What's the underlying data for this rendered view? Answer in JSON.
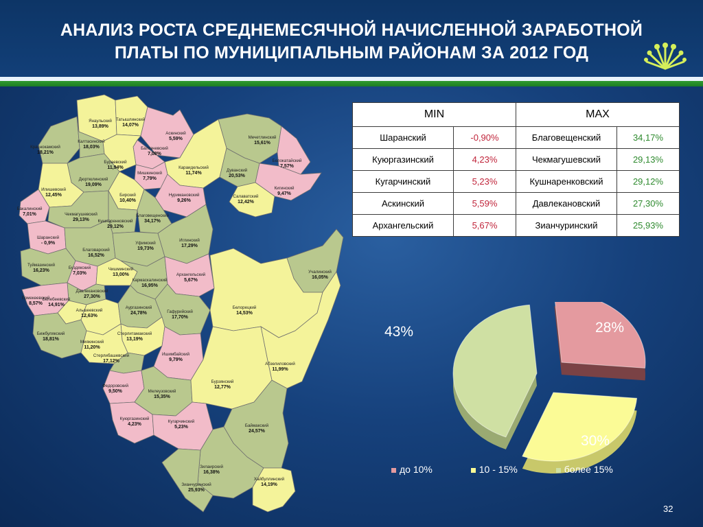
{
  "slide": {
    "title_line1": "АНАЛИЗ РОСТА СРЕДНЕМЕСЯЧНОЙ НАЧИСЛЕННОЙ ЗАРАБОТНОЙ",
    "title_line2": "ПЛАТЫ ПО МУНИЦИПАЛЬНЫМ РАЙОНАМ ЗА 2012 ГОД",
    "page_number": "32"
  },
  "colors": {
    "low": "#f2bcc9",
    "mid": "#f4f39a",
    "high": "#b9c88e",
    "border": "#6f6f6f",
    "pie_low": "#e49a9f",
    "pie_mid": "#fbfb96",
    "pie_high": "#cfe0a3"
  },
  "table": {
    "header_min": "MIN",
    "header_max": "MAX",
    "rows": [
      {
        "min_name": "Шаранский",
        "min_val": "-0,90%",
        "max_name": "Благовещенский",
        "max_val": "34,17%"
      },
      {
        "min_name": "Куюргазинский",
        "min_val": "4,23%",
        "max_name": "Чекмагушевский",
        "max_val": "29,13%"
      },
      {
        "min_name": "Кугарчинский",
        "min_val": "5,23%",
        "max_name": "Кушнаренковский",
        "max_val": "29,12%"
      },
      {
        "min_name": "Аскинский",
        "min_val": "5,59%",
        "max_name": "Давлекановский",
        "max_val": "27,30%"
      },
      {
        "min_name": "Архангельский",
        "min_val": "5,67%",
        "max_name": "Зианчуринский",
        "max_val": "25,93%"
      }
    ]
  },
  "map": {
    "districts": [
      {
        "name": "Янаульский",
        "value": "13,89%",
        "cat": "mid"
      },
      {
        "name": "Татышлинский",
        "value": "14,07%",
        "cat": "mid"
      },
      {
        "name": "Аскинский",
        "value": "5,59%",
        "cat": "low"
      },
      {
        "name": "Мечетлинский",
        "value": "15,61%",
        "cat": "high"
      },
      {
        "name": "Краснокамский",
        "value": "18,21%",
        "cat": "high"
      },
      {
        "name": "Калтасинский",
        "value": "18,03%",
        "cat": "high"
      },
      {
        "name": "Балтачевский",
        "value": "7,08%",
        "cat": "low"
      },
      {
        "name": "Белокатайский",
        "value": "7,57%",
        "cat": "low"
      },
      {
        "name": "Бураевский",
        "value": "11,94%",
        "cat": "mid"
      },
      {
        "name": "Караидельский",
        "value": "11,74%",
        "cat": "mid"
      },
      {
        "name": "Дуванский",
        "value": "20,53%",
        "cat": "high"
      },
      {
        "name": "Дюртюлинский",
        "value": "19,09%",
        "cat": "high"
      },
      {
        "name": "Мишкинский",
        "value": "7,79%",
        "cat": "low"
      },
      {
        "name": "Кигинский",
        "value": "9,47%",
        "cat": "low"
      },
      {
        "name": "Илишевский",
        "value": "12,45%",
        "cat": "mid"
      },
      {
        "name": "Бирский",
        "value": "10,40%",
        "cat": "mid"
      },
      {
        "name": "Нуримановский",
        "value": "9,26%",
        "cat": "low"
      },
      {
        "name": "Салаватский",
        "value": "12,42%",
        "cat": "mid"
      },
      {
        "name": "Бакалинский",
        "value": "7,01%",
        "cat": "low"
      },
      {
        "name": "Чекмагушевский",
        "value": "29,13%",
        "cat": "high"
      },
      {
        "name": "Кушнаренковский",
        "value": "29,12%",
        "cat": "high"
      },
      {
        "name": "Благовещенский",
        "value": "34,17%",
        "cat": "high"
      },
      {
        "name": "Шаранский",
        "value": "- 0,9%",
        "cat": "low"
      },
      {
        "name": "Благоварский",
        "value": "16,52%",
        "cat": "high"
      },
      {
        "name": "Уфимский",
        "value": "19,73%",
        "cat": "high"
      },
      {
        "name": "Иглинский",
        "value": "17,29%",
        "cat": "high"
      },
      {
        "name": "Туймазинский",
        "value": "16,23%",
        "cat": "high"
      },
      {
        "name": "Буздякский",
        "value": "7,03%",
        "cat": "low"
      },
      {
        "name": "Чишминский",
        "value": "13,00%",
        "cat": "mid"
      },
      {
        "name": "Кармаскалинский",
        "value": "16,95%",
        "cat": "high"
      },
      {
        "name": "Архангельский",
        "value": "5,67%",
        "cat": "low"
      },
      {
        "name": "Учалинский",
        "value": "16,05%",
        "cat": "high"
      },
      {
        "name": "Давлекановский",
        "value": "27,30%",
        "cat": "high"
      },
      {
        "name": "Ермекеевский",
        "value": "8,57%",
        "cat": "low"
      },
      {
        "name": "Белебеевский",
        "value": "14,91%",
        "cat": "mid"
      },
      {
        "name": "Альшеевский",
        "value": "12,63%",
        "cat": "mid"
      },
      {
        "name": "Аургазинский",
        "value": "24,78%",
        "cat": "high"
      },
      {
        "name": "Гафурийский",
        "value": "17,70%",
        "cat": "high"
      },
      {
        "name": "Белорецкий",
        "value": "14,53%",
        "cat": "mid"
      },
      {
        "name": "Бижбулякский",
        "value": "18,81%",
        "cat": "high"
      },
      {
        "name": "Стерлитамакский",
        "value": "13,19%",
        "cat": "mid"
      },
      {
        "name": "Миякинский",
        "value": "11,20%",
        "cat": "mid"
      },
      {
        "name": "Стерлибашевский",
        "value": "17,12%",
        "cat": "high"
      },
      {
        "name": "Ишимбайский",
        "value": "9,79%",
        "cat": "low"
      },
      {
        "name": "Абзелиловский",
        "value": "11,99%",
        "cat": "mid"
      },
      {
        "name": "Федоровский",
        "value": "9,50%",
        "cat": "low"
      },
      {
        "name": "Мелеузовский",
        "value": "15,35%",
        "cat": "high"
      },
      {
        "name": "Бурзянский",
        "value": "12,77%",
        "cat": "mid"
      },
      {
        "name": "Куюргазинский",
        "value": "4,23%",
        "cat": "low"
      },
      {
        "name": "Кугарчинский",
        "value": "5,23%",
        "cat": "low"
      },
      {
        "name": "Баймакский",
        "value": "24,57%",
        "cat": "high"
      },
      {
        "name": "Зилаирский",
        "value": "16,38%",
        "cat": "high"
      },
      {
        "name": "Хайбуллинский",
        "value": "14,19%",
        "cat": "mid"
      },
      {
        "name": "Зианчуринский",
        "value": "25,93%",
        "cat": "high"
      }
    ]
  },
  "chart_data": {
    "type": "pie",
    "title": "",
    "categories": [
      "до 10%",
      "10 - 15%",
      "более 15%"
    ],
    "values": [
      28,
      30,
      43
    ],
    "labels": [
      "28%",
      "30%",
      "43%"
    ],
    "legend_position": "bottom",
    "exploded": true,
    "style": "3d"
  }
}
